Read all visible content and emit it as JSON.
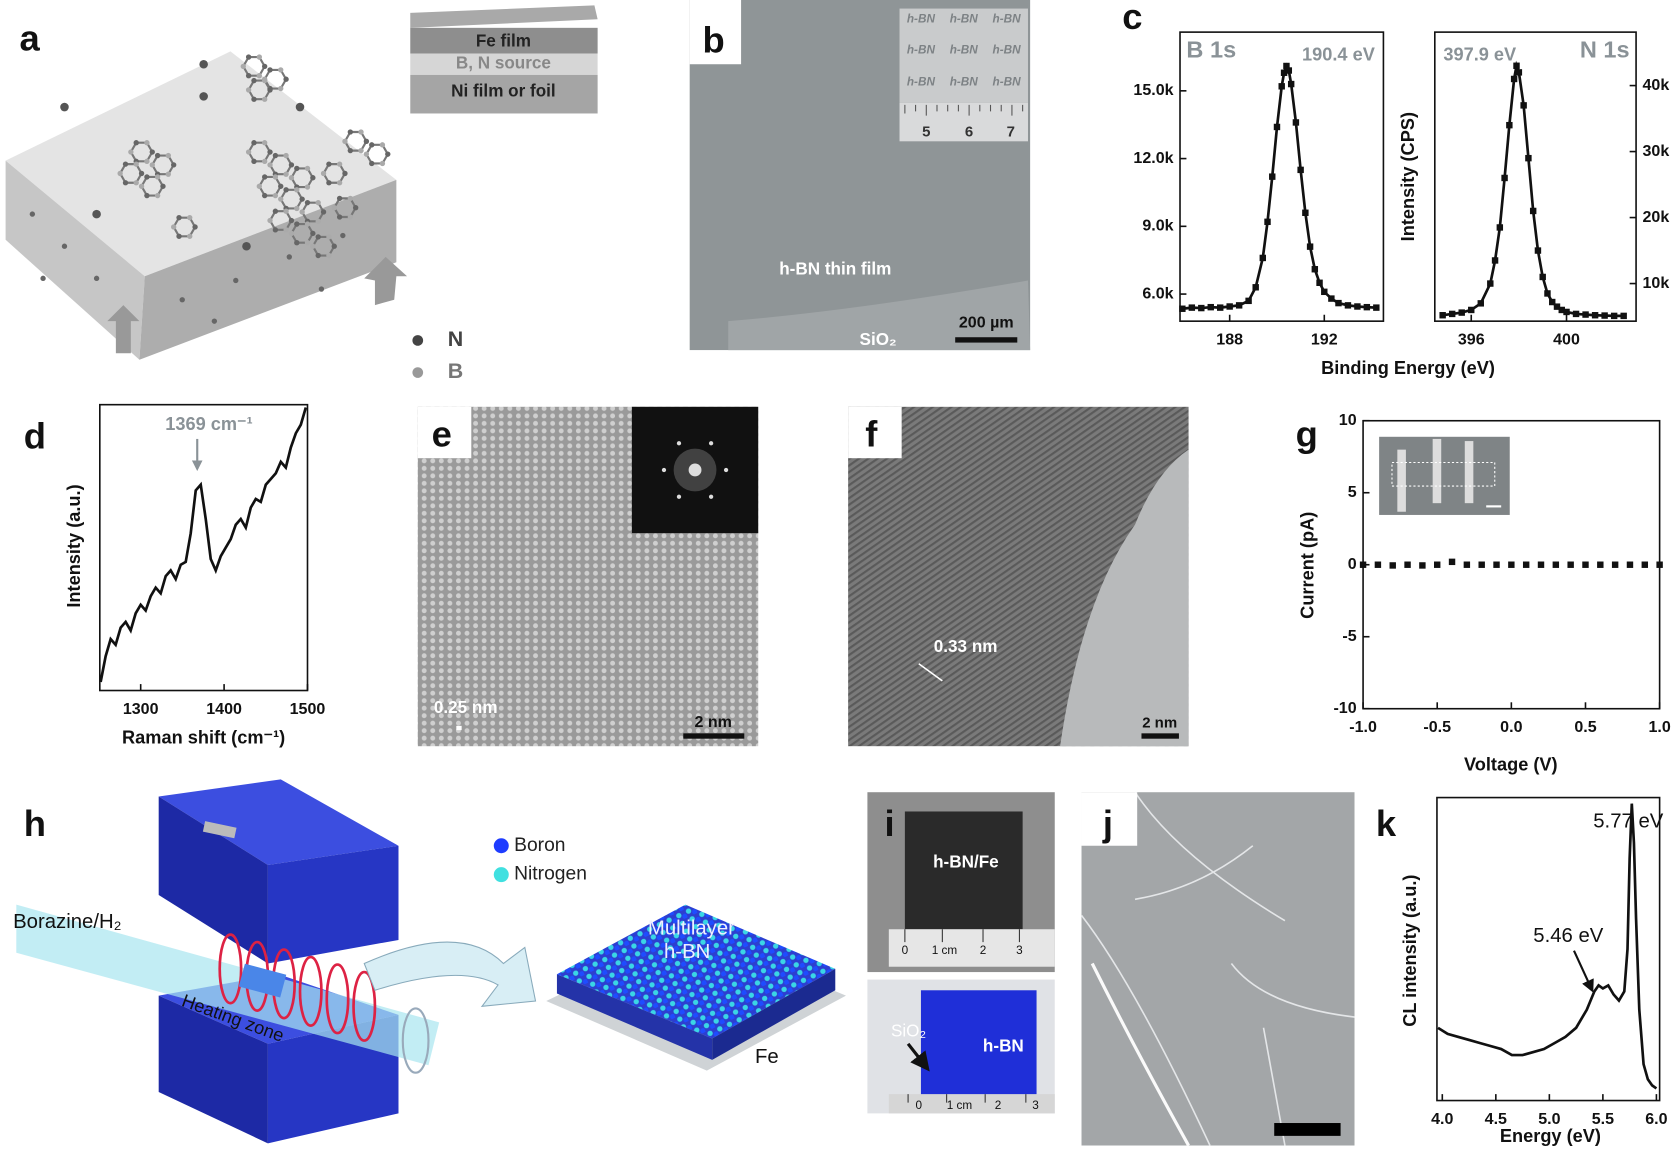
{
  "panel_labels": [
    "a",
    "b",
    "c",
    "d",
    "e",
    "f",
    "g",
    "h",
    "i",
    "j",
    "k"
  ],
  "panel_a": {
    "inset_layers": [
      "Fe film",
      "B, N source",
      "Ni film or foil"
    ],
    "legend": [
      "N",
      "B"
    ]
  },
  "panel_b": {
    "inset_tile": "h-BN",
    "ruler_labels": [
      "5",
      "6",
      "7"
    ],
    "film_label": "h-BN thin film",
    "substrate_label": "SiO₂",
    "scale_bar": "200 µm"
  },
  "panel_e": {
    "lattice_spacing": "0.25 nm",
    "scale_bar": "2 nm"
  },
  "panel_f": {
    "lattice_spacing": "0.33 nm",
    "scale_bar": "2 nm"
  },
  "panel_h": {
    "gas": "Borazine/H₂",
    "zone": "Heating zone",
    "legend": [
      "Boron",
      "Nitrogen"
    ],
    "product": [
      "Multilayer",
      "h-BN"
    ],
    "substrate": "Fe"
  },
  "panel_i": {
    "top_label": "h-BN/Fe",
    "bottom_label": "h-BN",
    "substrate_label": "SiO₂",
    "ruler_labels": [
      "0",
      "1 cm",
      "2",
      "3"
    ]
  },
  "chart_data": [
    {
      "type": "line",
      "markers": "square",
      "color": "#111111",
      "title": "B 1s",
      "annotations": [
        "190.4 eV"
      ],
      "xlabel": "Binding Energy (eV)",
      "xlim": [
        185.9,
        194.5
      ],
      "ylim": [
        4800,
        17600
      ],
      "xticks": [
        188,
        192
      ],
      "yticks": [
        {
          "value": 6000,
          "label": "6.0k"
        },
        {
          "value": 9000,
          "label": "9.0k"
        },
        {
          "value": 12000,
          "label": "12.0k"
        },
        {
          "value": 15000,
          "label": "15.0k"
        }
      ],
      "x": [
        186.0,
        186.4,
        186.8,
        187.2,
        187.6,
        188.0,
        188.4,
        188.8,
        189.1,
        189.4,
        189.6,
        189.8,
        190.0,
        190.2,
        190.3,
        190.4,
        190.5,
        190.6,
        190.8,
        191.0,
        191.2,
        191.4,
        191.6,
        191.8,
        192.0,
        192.3,
        192.6,
        193.0,
        193.4,
        193.8,
        194.2
      ],
      "values": [
        5350,
        5400,
        5380,
        5420,
        5400,
        5450,
        5500,
        5700,
        6300,
        7600,
        9200,
        11200,
        13400,
        15200,
        15800,
        16100,
        15900,
        15300,
        13600,
        11500,
        9600,
        8100,
        7100,
        6500,
        6100,
        5800,
        5600,
        5500,
        5450,
        5420,
        5400
      ]
    },
    {
      "type": "line",
      "markers": "square",
      "color": "#111111",
      "title": "N 1s",
      "annotations": [
        "397.9 eV"
      ],
      "ylabel": "Intensity (CPS)",
      "y_side": "right",
      "xlim": [
        394.47,
        402.92
      ],
      "ylim": [
        4300,
        48100
      ],
      "xticks": [
        396,
        400
      ],
      "yticks": [
        {
          "value": 10000,
          "label": "10k"
        },
        {
          "value": 20000,
          "label": "20k"
        },
        {
          "value": 30000,
          "label": "30k"
        },
        {
          "value": 40000,
          "label": "40k"
        }
      ],
      "x": [
        394.8,
        395.2,
        395.6,
        396.0,
        396.4,
        396.8,
        397.0,
        397.2,
        397.4,
        397.6,
        397.8,
        397.9,
        398.0,
        398.2,
        398.4,
        398.6,
        398.8,
        399.0,
        399.2,
        399.4,
        399.6,
        399.8,
        400.0,
        400.4,
        400.8,
        401.2,
        401.6,
        402.0,
        402.4
      ],
      "values": [
        5200,
        5400,
        5600,
        6000,
        7000,
        10000,
        13500,
        18500,
        26000,
        34000,
        41000,
        43000,
        42000,
        37000,
        29000,
        21000,
        15000,
        11000,
        8500,
        7200,
        6500,
        6000,
        5700,
        5400,
        5300,
        5200,
        5150,
        5100,
        5100
      ]
    },
    {
      "type": "line",
      "color": "#111111",
      "annotations": [
        "1369 cm⁻¹"
      ],
      "xlabel": "Raman shift (cm⁻¹)",
      "ylabel": "Intensity (a.u.)",
      "xlim": [
        1251,
        1500
      ],
      "ylim": [
        0,
        1
      ],
      "xticks": [
        1300,
        1400,
        1500
      ],
      "x": [
        1252,
        1258,
        1264,
        1270,
        1276,
        1282,
        1288,
        1294,
        1300,
        1306,
        1312,
        1318,
        1324,
        1330,
        1336,
        1342,
        1348,
        1354,
        1360,
        1366,
        1372,
        1378,
        1384,
        1390,
        1396,
        1402,
        1408,
        1414,
        1420,
        1426,
        1432,
        1438,
        1444,
        1450,
        1456,
        1462,
        1468,
        1474,
        1480,
        1486,
        1492,
        1498
      ],
      "values": [
        0.03,
        0.12,
        0.18,
        0.16,
        0.22,
        0.24,
        0.21,
        0.27,
        0.3,
        0.28,
        0.33,
        0.36,
        0.34,
        0.4,
        0.42,
        0.39,
        0.44,
        0.45,
        0.55,
        0.7,
        0.72,
        0.6,
        0.46,
        0.42,
        0.47,
        0.5,
        0.53,
        0.58,
        0.6,
        0.57,
        0.64,
        0.67,
        0.66,
        0.72,
        0.74,
        0.76,
        0.8,
        0.78,
        0.85,
        0.9,
        0.93,
        0.99
      ]
    },
    {
      "type": "scatter",
      "markers": "square",
      "color": "#111111",
      "xlabel": "Voltage (V)",
      "ylabel": "Current (pA)",
      "xlim": [
        -1,
        1
      ],
      "ylim": [
        -10,
        10
      ],
      "xticks": [
        {
          "value": -1,
          "label": "-1.0"
        },
        -0.5,
        {
          "value": 0,
          "label": "0.0"
        },
        0.5,
        {
          "value": 1,
          "label": "1.0"
        }
      ],
      "yticks": [
        10,
        5,
        0,
        -5,
        -10
      ],
      "x": [
        -1,
        -0.9,
        -0.8,
        -0.7,
        -0.6,
        -0.5,
        -0.4,
        -0.3,
        -0.2,
        -0.1,
        0,
        0.1,
        0.2,
        0.3,
        0.4,
        0.5,
        0.6,
        0.7,
        0.8,
        0.9,
        1
      ],
      "values": [
        0,
        0,
        -0.05,
        0,
        -0.05,
        0,
        0.2,
        0,
        0,
        0,
        0,
        0,
        0,
        0,
        0,
        0,
        0,
        0,
        0,
        0,
        0
      ]
    },
    {
      "type": "line",
      "color": "#111111",
      "annotations": [
        "5.77 eV",
        "5.46 eV"
      ],
      "xlabel": "Energy (eV)",
      "ylabel": "CL intensity (a.u.)",
      "xlim": [
        3.95,
        6.03
      ],
      "ylim": [
        0,
        1
      ],
      "xticks": [
        {
          "value": 4,
          "label": "4.0"
        },
        4.5,
        {
          "value": 5,
          "label": "5.0"
        },
        5.5,
        {
          "value": 6,
          "label": "6.0"
        }
      ],
      "x": [
        3.96,
        4.05,
        4.15,
        4.25,
        4.35,
        4.45,
        4.55,
        4.65,
        4.75,
        4.85,
        4.95,
        5.05,
        5.15,
        5.25,
        5.35,
        5.42,
        5.46,
        5.5,
        5.55,
        5.6,
        5.65,
        5.7,
        5.73,
        5.75,
        5.77,
        5.79,
        5.81,
        5.84,
        5.88,
        5.92,
        5.96,
        6.0
      ],
      "values": [
        0.24,
        0.22,
        0.21,
        0.2,
        0.19,
        0.18,
        0.17,
        0.15,
        0.15,
        0.16,
        0.17,
        0.19,
        0.21,
        0.24,
        0.3,
        0.36,
        0.38,
        0.37,
        0.38,
        0.35,
        0.33,
        0.36,
        0.5,
        0.8,
        0.98,
        0.85,
        0.6,
        0.3,
        0.12,
        0.07,
        0.05,
        0.04
      ]
    }
  ]
}
